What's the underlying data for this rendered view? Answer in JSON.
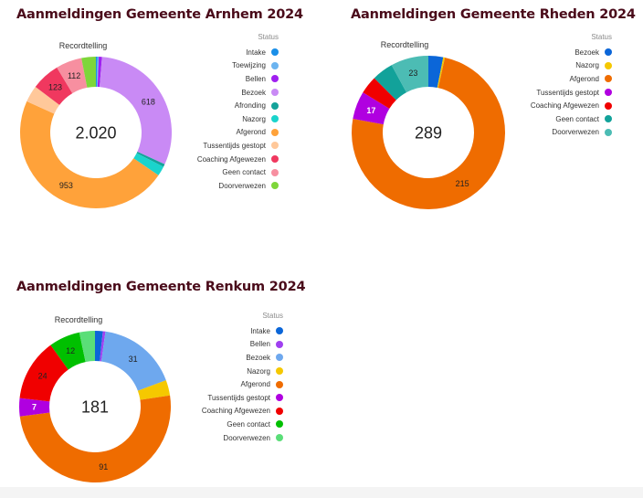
{
  "chart_data": [
    {
      "type": "pie",
      "title": "Aanmeldingen Gemeente Arnhem 2024",
      "subtitle": "Recordtelling",
      "legend_title": "Status",
      "legend_placement": "right",
      "total": "2.020",
      "slices": [
        {
          "label": "Intake",
          "value": 6,
          "color": "#1a8fe8",
          "show_value": false
        },
        {
          "label": "Toewijzing",
          "value": 6,
          "color": "#6cb4f0",
          "show_value": false
        },
        {
          "label": "Bellen",
          "value": 14,
          "color": "#a020f0",
          "show_value": false
        },
        {
          "label": "Bezoek",
          "value": 618,
          "color": "#c98af5",
          "show_value": true
        },
        {
          "label": "Afronding",
          "value": 12,
          "color": "#14a39a",
          "show_value": false
        },
        {
          "label": "Nazorg",
          "value": 42,
          "color": "#1ad4cc",
          "show_value": false
        },
        {
          "label": "Afgerond",
          "value": 953,
          "color": "#ffa23a",
          "show_value": true
        },
        {
          "label": "Tussentijds gestopt",
          "value": 72,
          "color": "#ffc89a",
          "show_value": false
        },
        {
          "label": "Coaching Afgewezen",
          "value": 123,
          "color": "#f0385f",
          "show_value": true
        },
        {
          "label": "Geen contact",
          "value": 112,
          "color": "#f78fa0",
          "show_value": true
        },
        {
          "label": "Doorverwezen",
          "value": 62,
          "color": "#7ed63a",
          "show_value": false
        }
      ]
    },
    {
      "type": "pie",
      "title": "Aanmeldingen Gemeente Rheden 2024",
      "subtitle": "Recordtelling",
      "legend_title": "Status",
      "legend_placement": "right",
      "total": "289",
      "slices": [
        {
          "label": "Bezoek",
          "value": 9,
          "color": "#0b66d8",
          "show_value": false
        },
        {
          "label": "Nazorg",
          "value": 1,
          "color": "#f5c800",
          "show_value": false
        },
        {
          "label": "Afgerond",
          "value": 215,
          "color": "#ef6c00",
          "show_value": true
        },
        {
          "label": "Tussentijds gestopt",
          "value": 17,
          "color": "#b000e0",
          "show_value": true,
          "label_color": "#ffffff"
        },
        {
          "label": "Coaching Afgewezen",
          "value": 11,
          "color": "#f00000",
          "show_value": false
        },
        {
          "label": "Geen contact",
          "value": 13,
          "color": "#12a29a",
          "show_value": false
        },
        {
          "label": "Doorverwezen",
          "value": 23,
          "color": "#4cbcb4",
          "show_value": true
        }
      ]
    },
    {
      "type": "pie",
      "title": "Aanmeldingen Gemeente Renkum 2024",
      "subtitle": "Recordtelling",
      "legend_title": "Status",
      "legend_placement": "right",
      "total": "181",
      "slices": [
        {
          "label": "Intake",
          "value": 3,
          "color": "#0b66d8",
          "show_value": false
        },
        {
          "label": "Bellen",
          "value": 1,
          "color": "#a040f0",
          "show_value": false
        },
        {
          "label": "Bezoek",
          "value": 31,
          "color": "#6ea8ee",
          "show_value": true
        },
        {
          "label": "Nazorg",
          "value": 6,
          "color": "#f5c800",
          "show_value": false
        },
        {
          "label": "Afgerond",
          "value": 91,
          "color": "#ef6c00",
          "show_value": true
        },
        {
          "label": "Tussentijds gestopt",
          "value": 7,
          "color": "#b000e0",
          "show_value": true,
          "label_color": "#ffffff"
        },
        {
          "label": "Coaching Afgewezen",
          "value": 24,
          "color": "#f00000",
          "show_value": true
        },
        {
          "label": "Geen contact",
          "value": 12,
          "color": "#00c000",
          "show_value": true
        },
        {
          "label": "Doorverwezen",
          "value": 6,
          "color": "#5ade78",
          "show_value": false
        }
      ]
    }
  ]
}
